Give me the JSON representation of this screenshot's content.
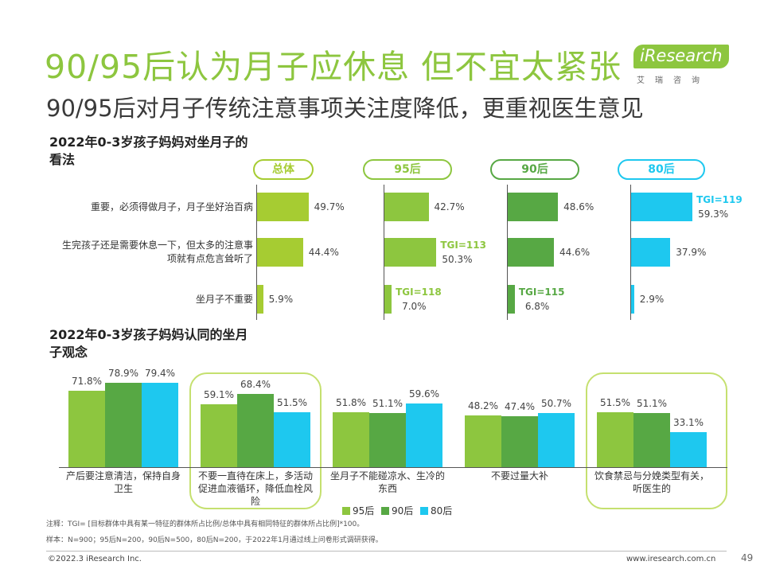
{
  "header": {
    "title": "90/95后认为月子应休息 但不宜太紧张",
    "subtitle": "90/95后对月子传统注意事项关注度降低，更重视医生意见",
    "logo_text": "iResearch",
    "logo_sub": "艾瑞咨询"
  },
  "colors": {
    "total": "#a6cc32",
    "g95": "#8dc63f",
    "g90": "#57a844",
    "g80": "#1ec8ef",
    "title": "#8dc63f"
  },
  "chart_data": [
    {
      "type": "bar",
      "orientation": "horizontal",
      "title": "2022年0-3岁孩子妈妈对坐月子的看法",
      "groups": [
        "总体",
        "95后",
        "90后",
        "80后"
      ],
      "categories": [
        "重要，必须得做月子，月子坐好治百病",
        "生完孩子还是需要休息一下，但太多的注意事项就有点危言耸听了",
        "坐月子不重要"
      ],
      "series": [
        {
          "name": "总体",
          "values": [
            49.7,
            44.4,
            5.9
          ],
          "tgi": [
            "",
            "",
            ""
          ]
        },
        {
          "name": "95后",
          "values": [
            42.7,
            50.3,
            7.0
          ],
          "tgi": [
            "",
            "TGI=113",
            "TGI=118"
          ]
        },
        {
          "name": "90后",
          "values": [
            48.6,
            44.6,
            6.8
          ],
          "tgi": [
            "",
            "",
            "TGI=115"
          ]
        },
        {
          "name": "80后",
          "values": [
            59.3,
            37.9,
            2.9
          ],
          "tgi": [
            "TGI=119",
            "",
            ""
          ]
        }
      ],
      "unit": "%"
    },
    {
      "type": "bar",
      "title": "2022年0-3岁孩子妈妈认同的坐月子观念",
      "categories": [
        "产后要注意清洁，保持自身卫生",
        "不要一直待在床上，多活动促进血液循环，降低血栓风险",
        "坐月子不能碰凉水、生冷的东西",
        "不要过量大补",
        "饮食禁忌与分娩类型有关，听医生的"
      ],
      "series": [
        {
          "name": "95后",
          "values": [
            71.8,
            59.1,
            51.8,
            48.2,
            51.5
          ]
        },
        {
          "name": "90后",
          "values": [
            78.9,
            68.4,
            51.1,
            47.4,
            51.1
          ]
        },
        {
          "name": "80后",
          "values": [
            79.4,
            51.5,
            59.6,
            50.7,
            33.1
          ]
        }
      ],
      "unit": "%",
      "legend": "bottom-right",
      "highlighted_categories": [
        1,
        4
      ]
    }
  ],
  "notes": {
    "note1": "注释：TGI= [目标群体中具有某一特征的群体所占比例/总体中具有相同特征的群体所占比例]*100。",
    "note2": "样本：N=900；95后N=200，90后N=500，80后N=200，于2022年1月通过线上问卷形式调研获得。"
  },
  "footer": {
    "copyright": "©2022.3 iResearch Inc.",
    "website": "www.iresearch.com.cn",
    "page": "49"
  }
}
